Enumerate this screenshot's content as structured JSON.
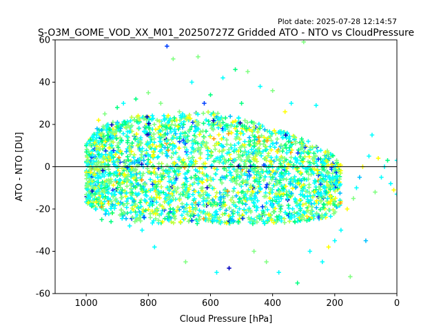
{
  "figure": {
    "plot_date": "Plot date: 2025-07-28 12:14:57"
  },
  "chart_data": {
    "type": "scatter",
    "title": "S-O3M_GOME_VOD_XX_M01_20250727Z Gridded ATO - NTO vs CloudPressure",
    "xlabel": "Cloud Pressure [hPa]",
    "ylabel": "ATO - NTO [DU]",
    "xlim": [
      1100,
      0
    ],
    "ylim": [
      -60,
      60
    ],
    "x_inverted": true,
    "x_ticks": [
      1000,
      800,
      600,
      400,
      200,
      0
    ],
    "y_ticks": [
      -60,
      -40,
      -20,
      0,
      20,
      40,
      60
    ],
    "marker": "+",
    "reference_line_y": 0,
    "colors": [
      "#00ffff",
      "#80ff80",
      "#00ff80",
      "#ffff00",
      "#c0ff40",
      "#00c0ff",
      "#0040ff",
      "#0000c0",
      "#ffa000"
    ],
    "grid": false,
    "legend": "none",
    "series": [
      {
        "x": [
          995,
          990,
          985,
          980,
          975,
          970,
          965,
          960,
          950,
          940,
          930,
          920,
          900,
          880,
          860,
          840,
          820,
          800,
          780,
          760,
          740,
          720,
          700,
          680,
          660,
          640,
          620,
          600,
          580,
          560,
          540,
          520,
          500,
          480,
          460,
          440,
          420,
          400,
          380,
          360,
          340,
          320,
          300,
          280,
          260,
          240,
          220,
          200,
          180,
          160,
          150,
          140,
          130,
          120,
          110,
          100,
          90,
          80,
          70,
          60,
          50,
          40,
          30,
          20,
          10,
          0,
          0
        ],
        "y": [
          -15,
          12,
          -18,
          14,
          0,
          -20,
          18,
          22,
          -25,
          25,
          20,
          -26,
          28,
          30,
          -28,
          32,
          -30,
          35,
          -38,
          30,
          57,
          51,
          26,
          -45,
          40,
          52,
          30,
          34,
          -50,
          42,
          -48,
          46,
          30,
          45,
          -40,
          38,
          -45,
          36,
          -50,
          26,
          30,
          -55,
          59,
          -40,
          29,
          -45,
          -38,
          -35,
          -30,
          -20,
          -52,
          -15,
          -10,
          -5,
          0,
          -35,
          5,
          15,
          -12,
          4,
          -5,
          0,
          3,
          -8,
          -11,
          3,
          -13
        ]
      }
    ],
    "envelope": {
      "x": [
        1000,
        980,
        950,
        900,
        850,
        800,
        750,
        700,
        650,
        600,
        550,
        500,
        450,
        400,
        350,
        300,
        250,
        200,
        180
      ],
      "y_high": [
        12,
        15,
        20,
        22,
        24,
        25,
        25,
        25,
        26,
        26,
        25,
        23,
        21,
        18,
        16,
        13,
        10,
        6,
        2
      ],
      "y_low": [
        -17,
        -19,
        -22,
        -24,
        -26,
        -27,
        -27,
        -27,
        -27,
        -27,
        -27,
        -27,
        -27,
        -27,
        -27,
        -26,
        -25,
        -23,
        -20
      ]
    }
  }
}
